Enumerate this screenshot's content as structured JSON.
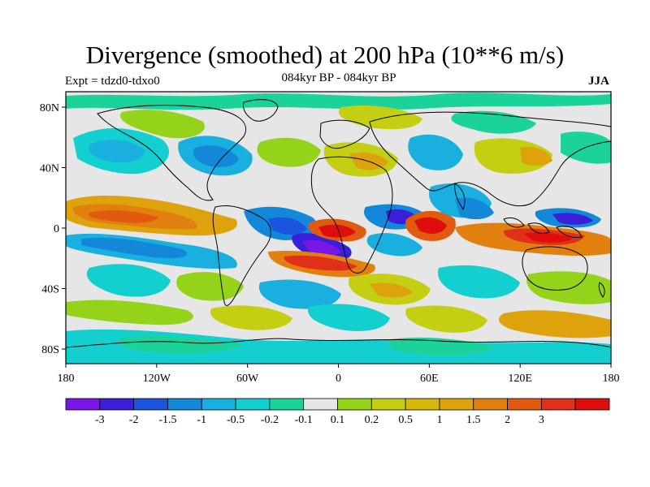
{
  "title": "Divergence (smoothed) at 200 hPa (10**6 m/s)",
  "subtitle": "084kyr BP - 084kyr BP",
  "experiment": "Expt = tdzd0-tdxo0",
  "season": "JJA",
  "axes": {
    "y_ticks": [
      "80N",
      "40N",
      "0",
      "40S",
      "80S"
    ],
    "x_ticks": [
      "180",
      "120W",
      "60W",
      "0",
      "60E",
      "120E",
      "180"
    ]
  },
  "colorbar": {
    "colors": [
      "#7b17e6",
      "#3b1ed8",
      "#1b55dd",
      "#1388d8",
      "#19b0e0",
      "#14cfd0",
      "#1bd39a",
      "#e6e6e6",
      "#94d31a",
      "#c4cf14",
      "#d6b90c",
      "#dea30c",
      "#e2800f",
      "#e05a10",
      "#e0301a",
      "#e00d0d"
    ],
    "labels": [
      "-3",
      "-2",
      "-1.5",
      "-1",
      "-0.5",
      "-0.2",
      "-0.1",
      "0.1",
      "0.2",
      "0.5",
      "1",
      "1.5",
      "2",
      "3"
    ]
  }
}
